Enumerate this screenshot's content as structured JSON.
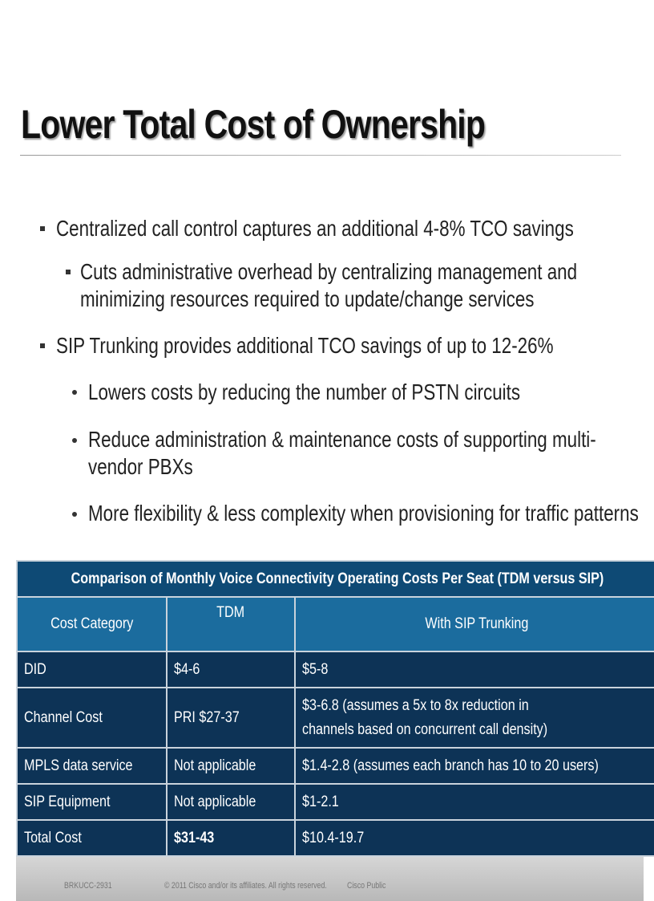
{
  "title": "Lower Total Cost of Ownership",
  "bullets": [
    "Centralized call control captures an additional 4-8% TCO savings",
    "Cuts administrative overhead by centralizing management and minimizing resources required to update/change services",
    "SIP Trunking provides additional TCO savings of up to 12-26%",
    "Lowers costs by reducing the number of PSTN circuits",
    "Reduce administration & maintenance costs of supporting multi-vendor PBXs",
    "More flexibility & less complexity when provisioning for traffic patterns"
  ],
  "table": {
    "caption": "Comparison of Monthly Voice Connectivity Operating Costs Per Seat (TDM versus SIP)",
    "header": [
      "Cost Category",
      "TDM",
      "With SIP Trunking"
    ],
    "rows": [
      [
        "DID",
        "$4-6",
        "$5-8"
      ],
      [
        "Channel Cost",
        "PRI $27-37",
        "$3-6.8 (assumes a 5x to 8x reduction in channels based on concurrent call density)"
      ],
      [
        "MPLS data service",
        "Not applicable",
        "$1.4-2.8 (assumes each branch has 10 to 20 users)"
      ],
      [
        "SIP Equipment",
        "Not applicable",
        "$1-2.1"
      ],
      [
        "Total Cost",
        "$31-43",
        "$10.4-19.7"
      ]
    ]
  },
  "footer": [
    "BRKUCC-2931",
    "© 2011 Cisco and/or its affiliates. All rights reserved.",
    "Cisco Public"
  ]
}
